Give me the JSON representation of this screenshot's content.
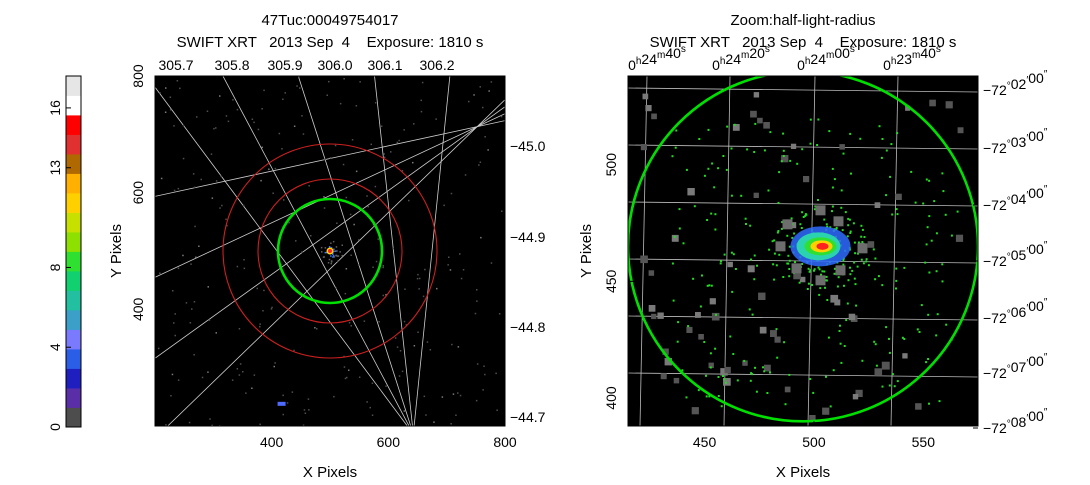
{
  "colorbar": {
    "tick_labels": [
      "0",
      "4",
      "8",
      "13",
      "16"
    ],
    "colors": [
      "#4d4d4d",
      "#5a2ea6",
      "#1f1fbf",
      "#2b5ee6",
      "#7a7aff",
      "#3aa0c8",
      "#22c0a0",
      "#10d070",
      "#30e030",
      "#8de000",
      "#c8e000",
      "#ffd000",
      "#ffb000",
      "#b06800",
      "#e03030",
      "#ff0000",
      "#ffffff",
      "#e6e6e6"
    ]
  },
  "chart_data": [
    {
      "type": "heatmap",
      "title": "47Tuc:00049754017",
      "subtitle": "SWIFT XRT   2013 Sep  4    Exposure: 1810 s",
      "xlabel": "X Pixels",
      "ylabel": "Y Pixels",
      "xlim": [
        200,
        800
      ],
      "ylim": [
        200,
        800
      ],
      "x_ticks": [
        "400",
        "600",
        "800"
      ],
      "y_ticks": [
        "400",
        "600",
        "800"
      ],
      "top_ticks": [
        "305.7",
        "305.8",
        "305.9",
        "306.0",
        "306.1",
        "306.2"
      ],
      "right_ticks": [
        "−45.0",
        "−44.9",
        "−44.8",
        "−44.7"
      ],
      "source": {
        "x": 500,
        "y": 500
      },
      "circles": [
        {
          "name": "half-light-radius",
          "color": "#00e000",
          "r": 52
        },
        {
          "color": "#cc2020",
          "r": 72
        },
        {
          "color": "#cc2020",
          "r": 107
        }
      ]
    },
    {
      "type": "heatmap",
      "title": "Zoom:half-light-radius",
      "subtitle": "SWIFT XRT   2013 Sep  4    Exposure: 1810 s",
      "xlabel": "X Pixels",
      "ylabel": "Y Pixels",
      "xlim": [
        415,
        575
      ],
      "ylim": [
        388,
        538
      ],
      "x_ticks": [
        "450",
        "500",
        "550"
      ],
      "y_ticks": [
        "400",
        "450",
        "500"
      ],
      "top_ticks": [
        {
          "h": "0",
          "m": "24",
          "s": "40"
        },
        {
          "h": "0",
          "m": "24",
          "s": "20"
        },
        {
          "h": "0",
          "m": "24",
          "s": "00"
        },
        {
          "h": "0",
          "m": "23",
          "s": "40"
        }
      ],
      "right_ticks": [
        {
          "d": "−72",
          "m": "02",
          "s": "00"
        },
        {
          "d": "−72",
          "m": "03",
          "s": "00"
        },
        {
          "d": "−72",
          "m": "04",
          "s": "00"
        },
        {
          "d": "−72",
          "m": "05",
          "s": "00"
        },
        {
          "d": "−72",
          "m": "06",
          "s": "00"
        },
        {
          "d": "−72",
          "m": "07",
          "s": "00"
        },
        {
          "d": "−72",
          "m": "08",
          "s": "00"
        }
      ],
      "source": {
        "x": 503,
        "y": 465
      },
      "circle": {
        "color": "#00e000",
        "cx": 495,
        "cy": 465,
        "r": 80
      }
    }
  ]
}
